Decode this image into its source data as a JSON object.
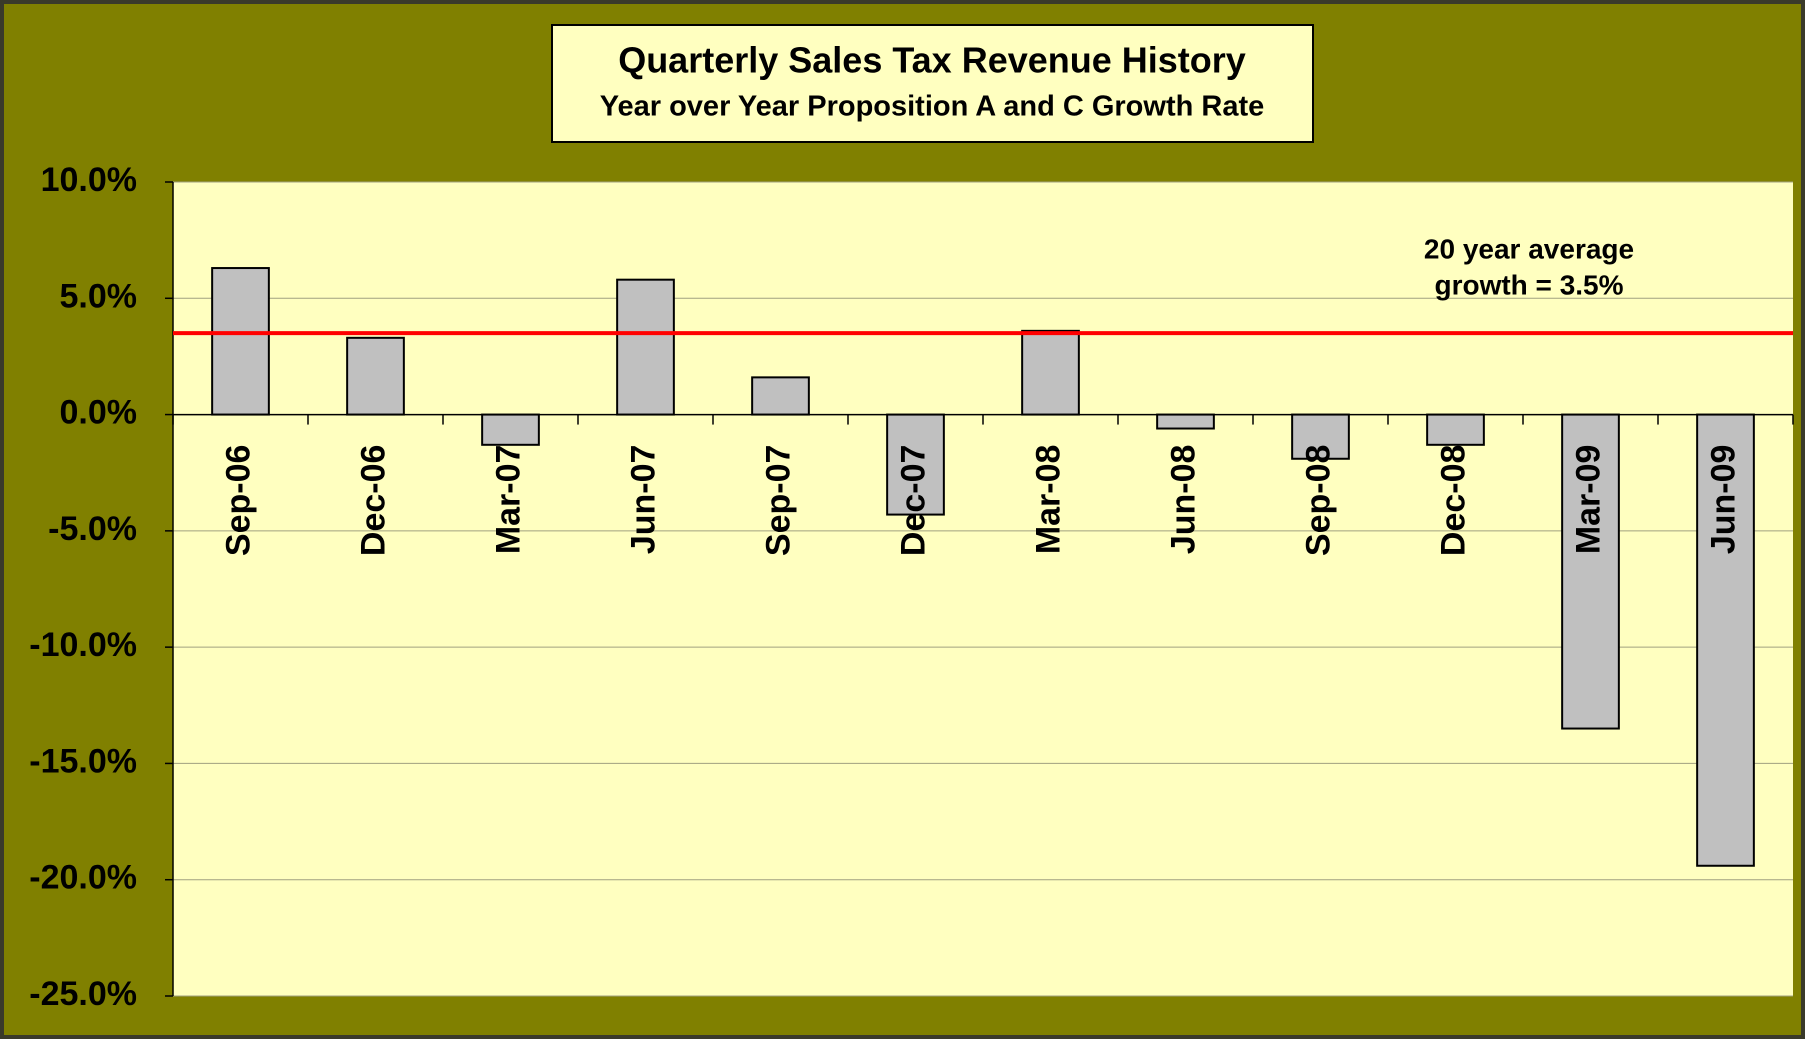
{
  "chart_data": {
    "type": "bar",
    "title": "Quarterly Sales Tax Revenue History",
    "subtitle": "Year over Year Proposition A and C Growth Rate",
    "categories": [
      "Sep-06",
      "Dec-06",
      "Mar-07",
      "Jun-07",
      "Sep-07",
      "Dec-07",
      "Mar-08",
      "Jun-08",
      "Sep-08",
      "Dec-08",
      "Mar-09",
      "Jun-09"
    ],
    "values": [
      6.3,
      3.3,
      -1.3,
      5.8,
      1.6,
      -4.3,
      3.6,
      -0.6,
      -1.9,
      -1.3,
      -13.5,
      -19.4
    ],
    "color": "#c0c0c0",
    "ylim": [
      -25,
      10
    ],
    "yticks": [
      {
        "value": -25,
        "label": "-25.0%"
      },
      {
        "value": -20,
        "label": "-20.0%"
      },
      {
        "value": -15,
        "label": "-15.0%"
      },
      {
        "value": -10,
        "label": "-10.0%"
      },
      {
        "value": -5,
        "label": "-5.0%"
      },
      {
        "value": 0,
        "label": "0.0%"
      },
      {
        "value": 5,
        "label": "5.0%"
      },
      {
        "value": 10,
        "label": "10.0%"
      }
    ],
    "grid": true,
    "reference_line": {
      "value": 3.5,
      "color": "#ff0000",
      "label": [
        "20 year average",
        "growth = 3.5%"
      ]
    }
  }
}
